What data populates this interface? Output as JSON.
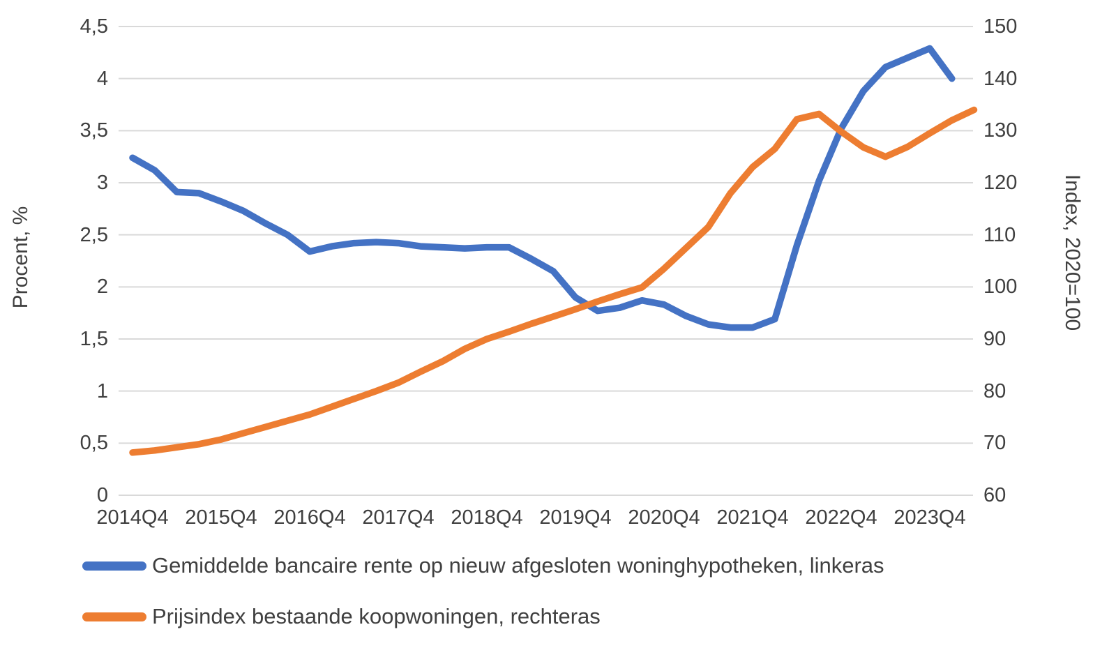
{
  "chart_data": {
    "type": "line",
    "title": "",
    "grid": true,
    "legend_position": "bottom-left",
    "background_color": "#ffffff",
    "gridline_color": "#d9d9d9",
    "text_color": "#3f3f3f",
    "x_tick_labels": [
      "2014Q4",
      "2015Q4",
      "2016Q4",
      "2017Q4",
      "2018Q4",
      "2019Q4",
      "2020Q4",
      "2021Q4",
      "2022Q4",
      "2023Q4"
    ],
    "x_quarters": [
      "2014Q4",
      "2015Q1",
      "2015Q2",
      "2015Q3",
      "2015Q4",
      "2016Q1",
      "2016Q2",
      "2016Q3",
      "2016Q4",
      "2017Q1",
      "2017Q2",
      "2017Q3",
      "2017Q4",
      "2018Q1",
      "2018Q2",
      "2018Q3",
      "2018Q4",
      "2019Q1",
      "2019Q2",
      "2019Q3",
      "2019Q4",
      "2020Q1",
      "2020Q2",
      "2020Q3",
      "2020Q4",
      "2021Q1",
      "2021Q2",
      "2021Q3",
      "2021Q4",
      "2022Q1",
      "2022Q2",
      "2022Q3",
      "2022Q4",
      "2023Q1",
      "2023Q2",
      "2023Q3",
      "2023Q4",
      "2024Q1",
      "2024Q2"
    ],
    "left_axis": {
      "label": "Procent, %",
      "min": 0,
      "max": 4.5,
      "tick_step": 0.5,
      "ticks": [
        "0",
        "0,5",
        "1",
        "1,5",
        "2",
        "2,5",
        "3",
        "3,5",
        "4",
        "4,5"
      ]
    },
    "right_axis": {
      "label": "Index, 2020=100",
      "min": 60,
      "max": 150,
      "tick_step": 10,
      "ticks": [
        "60",
        "70",
        "80",
        "90",
        "100",
        "110",
        "120",
        "130",
        "140",
        "150"
      ]
    },
    "series": [
      {
        "name": "Gemiddelde bancaire rente op nieuw afgesloten woninghypotheken, linkeras",
        "axis": "left",
        "color": "#4472C4",
        "values": [
          3.24,
          3.12,
          2.91,
          2.9,
          2.82,
          2.73,
          2.61,
          2.5,
          2.34,
          2.39,
          2.42,
          2.43,
          2.42,
          2.39,
          2.38,
          2.37,
          2.38,
          2.38,
          2.27,
          2.15,
          1.9,
          1.77,
          1.8,
          1.87,
          1.83,
          1.72,
          1.64,
          1.61,
          1.61,
          1.69,
          2.4,
          3.02,
          3.52,
          3.88,
          4.11,
          4.2,
          4.29,
          4.0
        ]
      },
      {
        "name": "Prijsindex bestaande koopwoningen, rechteras",
        "axis": "right",
        "color": "#ED7D31",
        "values": [
          68.2,
          68.6,
          69.2,
          69.8,
          70.7,
          71.9,
          73.1,
          74.3,
          75.5,
          77.0,
          78.5,
          80.0,
          81.6,
          83.7,
          85.7,
          88.1,
          90.0,
          91.4,
          92.9,
          94.3,
          95.7,
          97.2,
          98.6,
          99.9,
          103.5,
          107.5,
          111.5,
          118.0,
          123.0,
          126.5,
          132.2,
          133.2,
          129.8,
          126.8,
          125.0,
          126.9,
          129.5,
          132.0,
          134.0
        ]
      }
    ]
  }
}
